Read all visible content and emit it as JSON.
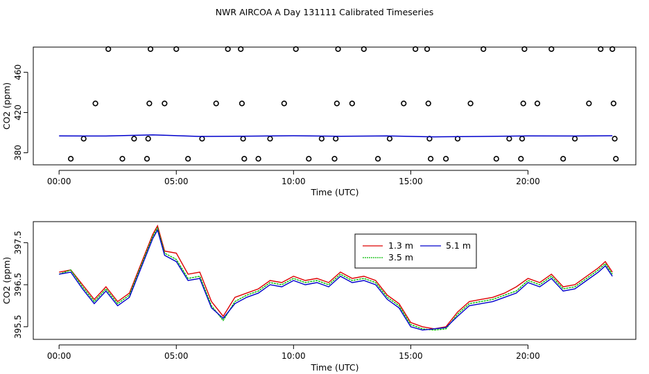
{
  "title": "NWR AIRCOA A  Day 131111  Calibrated Timeseries",
  "colors": {
    "1.3 m": "#dd0000",
    "3.5 m": "#00bb00",
    "5.1 m": "#0000cc",
    "axis": "#000000"
  },
  "chart_data": [
    {
      "type": "scatter",
      "xlabel": "Time (UTC)",
      "ylabel": "CO2 (ppm)",
      "xlim": [
        -1.1,
        24.6
      ],
      "ylim": [
        368,
        485
      ],
      "xticks": [
        "00:00",
        "05:00",
        "10:00",
        "15:00",
        "20:00"
      ],
      "yticks": [
        380,
        420,
        460
      ],
      "grid": false,
      "points": [
        {
          "x": 0.5,
          "y": 374
        },
        {
          "x": 1.05,
          "y": 394
        },
        {
          "x": 1.55,
          "y": 429
        },
        {
          "x": 2.1,
          "y": 483
        },
        {
          "x": 2.7,
          "y": 374
        },
        {
          "x": 3.2,
          "y": 394
        },
        {
          "x": 3.75,
          "y": 374
        },
        {
          "x": 3.8,
          "y": 394
        },
        {
          "x": 3.85,
          "y": 429
        },
        {
          "x": 3.9,
          "y": 483
        },
        {
          "x": 4.5,
          "y": 429
        },
        {
          "x": 5.0,
          "y": 483
        },
        {
          "x": 5.5,
          "y": 374
        },
        {
          "x": 6.1,
          "y": 394
        },
        {
          "x": 6.7,
          "y": 429
        },
        {
          "x": 7.2,
          "y": 483
        },
        {
          "x": 7.75,
          "y": 483
        },
        {
          "x": 7.8,
          "y": 429
        },
        {
          "x": 7.85,
          "y": 394
        },
        {
          "x": 7.9,
          "y": 374
        },
        {
          "x": 8.5,
          "y": 374
        },
        {
          "x": 9.0,
          "y": 394
        },
        {
          "x": 9.6,
          "y": 429
        },
        {
          "x": 10.1,
          "y": 483
        },
        {
          "x": 10.65,
          "y": 374
        },
        {
          "x": 11.2,
          "y": 394
        },
        {
          "x": 11.75,
          "y": 374
        },
        {
          "x": 11.8,
          "y": 394
        },
        {
          "x": 11.85,
          "y": 429
        },
        {
          "x": 11.9,
          "y": 483
        },
        {
          "x": 12.5,
          "y": 429
        },
        {
          "x": 13.0,
          "y": 483
        },
        {
          "x": 13.6,
          "y": 374
        },
        {
          "x": 14.1,
          "y": 394
        },
        {
          "x": 14.7,
          "y": 429
        },
        {
          "x": 15.2,
          "y": 483
        },
        {
          "x": 15.7,
          "y": 483
        },
        {
          "x": 15.75,
          "y": 429
        },
        {
          "x": 15.8,
          "y": 394
        },
        {
          "x": 15.85,
          "y": 374
        },
        {
          "x": 16.5,
          "y": 374
        },
        {
          "x": 17.0,
          "y": 394
        },
        {
          "x": 17.55,
          "y": 429
        },
        {
          "x": 18.1,
          "y": 483
        },
        {
          "x": 18.65,
          "y": 374
        },
        {
          "x": 19.2,
          "y": 394
        },
        {
          "x": 19.7,
          "y": 374
        },
        {
          "x": 19.75,
          "y": 394
        },
        {
          "x": 19.8,
          "y": 429
        },
        {
          "x": 19.85,
          "y": 483
        },
        {
          "x": 20.4,
          "y": 429
        },
        {
          "x": 21.0,
          "y": 483
        },
        {
          "x": 21.5,
          "y": 374
        },
        {
          "x": 22.0,
          "y": 394
        },
        {
          "x": 22.6,
          "y": 429
        },
        {
          "x": 23.1,
          "y": 483
        },
        {
          "x": 23.6,
          "y": 483
        },
        {
          "x": 23.65,
          "y": 429
        },
        {
          "x": 23.7,
          "y": 394
        },
        {
          "x": 23.75,
          "y": 374
        }
      ],
      "line": {
        "x": [
          0,
          2,
          4,
          6,
          8,
          10,
          12,
          14,
          16,
          18,
          20,
          22,
          23.6
        ],
        "y": [
          396.8,
          396.6,
          397.8,
          396.2,
          396.5,
          396.9,
          396.4,
          396.7,
          395.8,
          396.2,
          396.8,
          396.6,
          396.9
        ]
      }
    },
    {
      "type": "line",
      "xlabel": "Time (UTC)",
      "ylabel": "CO2 (ppm)",
      "xlim": [
        -1.1,
        24.6
      ],
      "ylim": [
        395.2,
        398.0
      ],
      "xticks": [
        "00:00",
        "05:00",
        "10:00",
        "15:00",
        "20:00"
      ],
      "yticks": [
        "395.5",
        "396.5",
        "397.5"
      ],
      "grid": false,
      "legend": {
        "position": "top-center",
        "entries": [
          "1.3 m",
          "5.1 m",
          "3.5 m"
        ]
      },
      "series": [
        {
          "name": "1.3 m",
          "x": [
            0,
            0.5,
            1,
            1.5,
            2,
            2.5,
            3,
            3.5,
            4,
            4.2,
            4.5,
            5,
            5.5,
            6,
            6.5,
            7,
            7.5,
            8,
            8.5,
            9,
            9.5,
            10,
            10.5,
            11,
            11.5,
            12,
            12.5,
            13,
            13.5,
            14,
            14.5,
            15,
            15.5,
            16,
            16.5,
            17,
            17.5,
            18,
            18.5,
            19,
            19.5,
            20,
            20.5,
            21,
            21.5,
            22,
            22.5,
            23,
            23.3,
            23.6
          ],
          "y": [
            396.8,
            396.85,
            396.5,
            396.15,
            396.45,
            396.1,
            396.3,
            397.0,
            397.7,
            397.9,
            397.3,
            397.25,
            396.75,
            396.8,
            396.1,
            395.75,
            396.2,
            396.3,
            396.4,
            396.6,
            396.55,
            396.7,
            396.6,
            396.65,
            396.55,
            396.8,
            396.65,
            396.7,
            396.6,
            396.25,
            396.05,
            395.6,
            395.5,
            395.45,
            395.5,
            395.85,
            396.1,
            396.15,
            396.2,
            396.3,
            396.45,
            396.65,
            396.55,
            396.75,
            396.45,
            396.5,
            396.7,
            396.9,
            397.05,
            396.8
          ]
        },
        {
          "name": "3.5 m",
          "x": [
            0,
            0.5,
            1,
            1.5,
            2,
            2.5,
            3,
            3.5,
            4,
            4.2,
            4.5,
            5,
            5.5,
            6,
            6.5,
            7,
            7.5,
            8,
            8.5,
            9,
            9.5,
            10,
            10.5,
            11,
            11.5,
            12,
            12.5,
            13,
            13.5,
            14,
            14.5,
            15,
            15.5,
            16,
            16.5,
            17,
            17.5,
            18,
            18.5,
            19,
            19.5,
            20,
            20.5,
            21,
            21.5,
            22,
            22.5,
            23,
            23.3,
            23.6
          ],
          "y": [
            396.75,
            396.85,
            396.45,
            396.1,
            396.4,
            396.05,
            396.25,
            396.95,
            397.65,
            397.85,
            397.25,
            397.1,
            396.65,
            396.7,
            396.0,
            395.65,
            396.1,
            396.25,
            396.35,
            396.55,
            396.5,
            396.65,
            396.55,
            396.6,
            396.5,
            396.75,
            396.6,
            396.65,
            396.55,
            396.2,
            396.0,
            395.55,
            395.45,
            395.42,
            395.45,
            395.8,
            396.05,
            396.1,
            396.15,
            396.25,
            396.35,
            396.6,
            396.5,
            396.7,
            396.4,
            396.45,
            396.65,
            396.85,
            397.0,
            396.75
          ]
        },
        {
          "name": "5.1 m",
          "x": [
            0,
            0.5,
            1,
            1.5,
            2,
            2.5,
            3,
            3.5,
            4,
            4.2,
            4.5,
            5,
            5.5,
            6,
            6.5,
            7,
            7.5,
            8,
            8.5,
            9,
            9.5,
            10,
            10.5,
            11,
            11.5,
            12,
            12.5,
            13,
            13.5,
            14,
            14.5,
            15,
            15.5,
            16,
            16.5,
            17,
            17.5,
            18,
            18.5,
            19,
            19.5,
            20,
            20.5,
            21,
            21.5,
            22,
            22.5,
            23,
            23.3,
            23.6
          ],
          "y": [
            396.75,
            396.8,
            396.4,
            396.05,
            396.35,
            396.0,
            396.2,
            396.9,
            397.6,
            397.8,
            397.2,
            397.05,
            396.6,
            396.65,
            395.95,
            395.7,
            396.05,
            396.2,
            396.3,
            396.5,
            396.45,
            396.6,
            396.5,
            396.55,
            396.45,
            396.7,
            396.55,
            396.6,
            396.5,
            396.15,
            395.95,
            395.5,
            395.42,
            395.45,
            395.48,
            395.75,
            396.0,
            396.05,
            396.1,
            396.2,
            396.3,
            396.55,
            396.45,
            396.65,
            396.35,
            396.4,
            396.6,
            396.8,
            396.95,
            396.7
          ]
        }
      ]
    }
  ]
}
